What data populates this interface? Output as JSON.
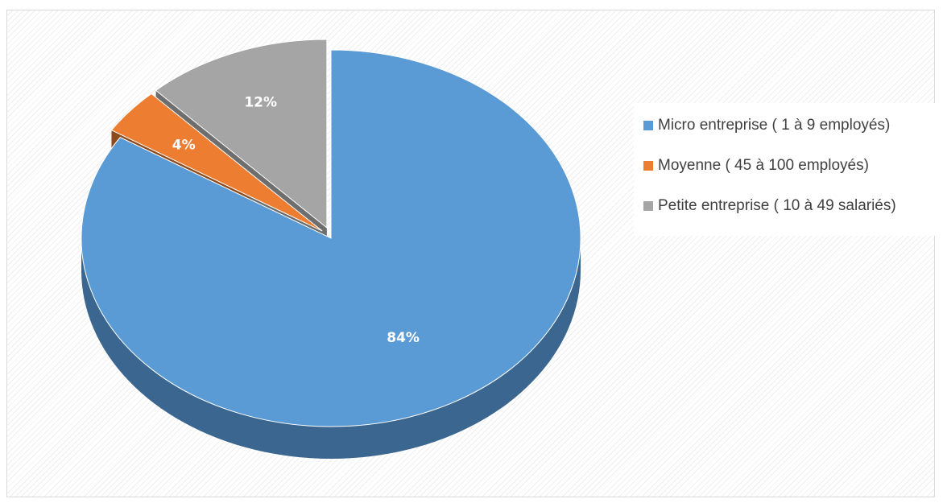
{
  "chart_data": {
    "type": "pie",
    "title": "",
    "slices": [
      {
        "label": "Micro entreprise ( 1 à 9 employés)",
        "value": 84,
        "display": "84%",
        "color": "#5B9BD5",
        "side_color": "#3A6690",
        "exploded": false
      },
      {
        "label": "Moyenne ( 45 à 100 employés)",
        "value": 4,
        "display": "4%",
        "color": "#ED7D31",
        "side_color": "#8E4A1C",
        "exploded": true
      },
      {
        "label": "Petite entreprise ( 10 à 49 salariés)",
        "value": 12,
        "display": "12%",
        "color": "#A5A5A5",
        "side_color": "#6E6E6E",
        "exploded": true
      }
    ],
    "legend_position": "right",
    "style": "3d-pie"
  }
}
